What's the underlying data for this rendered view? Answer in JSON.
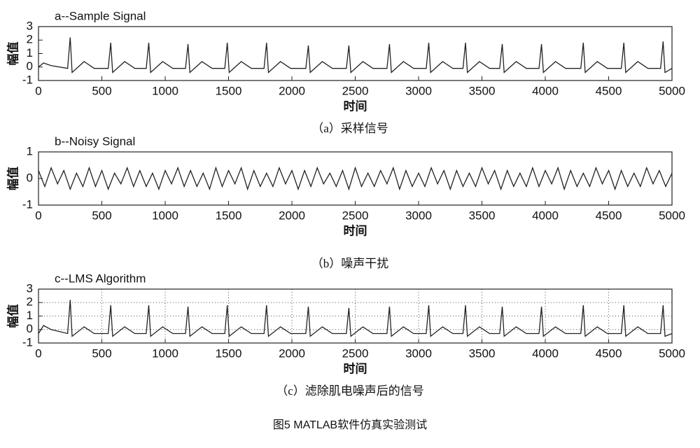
{
  "chart_data": [
    {
      "type": "line",
      "title": "a--Sample Signal",
      "ylabel": "幅值",
      "xlabel": "时间",
      "caption": "（a）采样信号",
      "color": "#222222",
      "grid": false,
      "xlim": [
        0,
        5000
      ],
      "ylim": [
        -1,
        3
      ],
      "xticks": [
        0,
        500,
        1000,
        1500,
        2000,
        2500,
        3000,
        3500,
        4000,
        4500,
        5000
      ],
      "yticks": [
        -1,
        0,
        1,
        2,
        3
      ],
      "x": [
        0,
        40,
        100,
        230,
        250,
        265,
        360,
        440,
        550,
        570,
        585,
        680,
        760,
        850,
        870,
        885,
        980,
        1060,
        1160,
        1180,
        1195,
        1290,
        1370,
        1470,
        1490,
        1505,
        1600,
        1680,
        1780,
        1800,
        1815,
        1910,
        1990,
        2110,
        2130,
        2145,
        2240,
        2320,
        2430,
        2450,
        2465,
        2560,
        2640,
        2750,
        2770,
        2785,
        2880,
        2960,
        3060,
        3080,
        3095,
        3190,
        3270,
        3350,
        3370,
        3385,
        3480,
        3560,
        3640,
        3660,
        3675,
        3770,
        3850,
        3950,
        3970,
        3985,
        4080,
        4160,
        4280,
        4300,
        4315,
        4410,
        4490,
        4600,
        4620,
        4635,
        4730,
        4810,
        4910,
        4930,
        4945,
        5000
      ],
      "values": [
        0,
        0.3,
        0.1,
        -0.1,
        2.2,
        -0.4,
        0.4,
        -0.1,
        -0.1,
        1.8,
        -0.4,
        0.4,
        -0.1,
        -0.1,
        1.8,
        -0.4,
        0.4,
        -0.1,
        -0.1,
        1.7,
        -0.4,
        0.4,
        -0.1,
        -0.1,
        1.8,
        -0.4,
        0.4,
        -0.1,
        -0.1,
        1.8,
        -0.4,
        0.4,
        -0.1,
        -0.1,
        1.6,
        -0.4,
        0.4,
        -0.1,
        -0.1,
        1.6,
        -0.4,
        0.4,
        -0.1,
        -0.1,
        1.7,
        -0.4,
        0.4,
        -0.1,
        -0.1,
        1.8,
        -0.4,
        0.4,
        -0.1,
        -0.1,
        1.8,
        -0.4,
        0.4,
        -0.1,
        -0.1,
        1.7,
        -0.4,
        0.4,
        -0.1,
        -0.1,
        1.7,
        -0.4,
        0.4,
        -0.1,
        -0.1,
        1.8,
        -0.4,
        0.4,
        -0.1,
        -0.1,
        1.8,
        -0.4,
        0.4,
        -0.1,
        -0.1,
        1.9,
        -0.4,
        -0.1
      ]
    },
    {
      "type": "line",
      "title": "b--Noisy Signal",
      "ylabel": "幅值",
      "xlabel": "时间",
      "caption": "（b）噪声干扰",
      "color": "#222222",
      "grid": false,
      "xlim": [
        0,
        5000
      ],
      "ylim": [
        -1,
        1
      ],
      "xticks": [
        0,
        500,
        1000,
        1500,
        2000,
        2500,
        3000,
        3500,
        4000,
        4500,
        5000
      ],
      "yticks": [
        -1,
        0,
        1
      ],
      "x": [
        0,
        50,
        100,
        150,
        200,
        250,
        300,
        350,
        400,
        450,
        500,
        550,
        600,
        650,
        700,
        750,
        800,
        850,
        900,
        950,
        1000,
        1050,
        1100,
        1150,
        1200,
        1250,
        1300,
        1350,
        1400,
        1450,
        1500,
        1550,
        1600,
        1650,
        1700,
        1750,
        1800,
        1850,
        1900,
        1950,
        2000,
        2050,
        2100,
        2150,
        2200,
        2250,
        2300,
        2350,
        2400,
        2450,
        2500,
        2550,
        2600,
        2650,
        2700,
        2750,
        2800,
        2850,
        2900,
        2950,
        3000,
        3050,
        3100,
        3150,
        3200,
        3250,
        3300,
        3350,
        3400,
        3450,
        3500,
        3550,
        3600,
        3650,
        3700,
        3750,
        3800,
        3850,
        3900,
        3950,
        4000,
        4050,
        4100,
        4150,
        4200,
        4250,
        4300,
        4350,
        4400,
        4450,
        4500,
        4550,
        4600,
        4650,
        4700,
        4750,
        4800,
        4850,
        4900,
        4950,
        5000
      ],
      "values": [
        0.3,
        -0.3,
        0.4,
        -0.2,
        0.3,
        -0.4,
        0.2,
        -0.3,
        0.4,
        -0.3,
        0.3,
        -0.4,
        0.2,
        -0.2,
        0.4,
        -0.3,
        0.3,
        -0.3,
        0.2,
        -0.4,
        0.3,
        -0.2,
        0.4,
        -0.3,
        0.3,
        -0.3,
        0.2,
        -0.4,
        0.4,
        -0.3,
        0.3,
        -0.2,
        0.4,
        -0.4,
        0.3,
        -0.3,
        0.2,
        -0.3,
        0.4,
        -0.2,
        0.3,
        -0.4,
        0.3,
        -0.3,
        0.4,
        -0.2,
        0.2,
        -0.3,
        0.3,
        -0.4,
        0.4,
        -0.3,
        0.2,
        -0.3,
        0.3,
        -0.2,
        0.4,
        -0.4,
        0.3,
        -0.3,
        0.2,
        -0.3,
        0.4,
        -0.2,
        0.3,
        -0.4,
        0.3,
        -0.3,
        0.2,
        -0.3,
        0.4,
        -0.2,
        0.3,
        -0.4,
        0.3,
        -0.3,
        0.2,
        -0.3,
        0.4,
        -0.3,
        0.3,
        -0.2,
        0.4,
        -0.4,
        0.3,
        -0.3,
        0.2,
        -0.3,
        0.4,
        -0.2,
        0.3,
        -0.4,
        0.3,
        -0.3,
        0.2,
        -0.3,
        0.4,
        -0.2,
        0.3,
        -0.3,
        0.2
      ]
    },
    {
      "type": "line",
      "title": "c--LMS Algorithm",
      "ylabel": "幅值",
      "xlabel": "时间",
      "caption": "（c）滤除肌电噪声后的信号",
      "color": "#222222",
      "grid": true,
      "xlim": [
        0,
        5000
      ],
      "ylim": [
        -1,
        3
      ],
      "xticks": [
        0,
        500,
        1000,
        1500,
        2000,
        2500,
        3000,
        3500,
        4000,
        4500,
        5000
      ],
      "yticks": [
        -1,
        0,
        1,
        2,
        3
      ],
      "x": [
        0,
        40,
        100,
        230,
        250,
        265,
        360,
        440,
        550,
        570,
        585,
        680,
        760,
        850,
        870,
        885,
        980,
        1060,
        1160,
        1180,
        1195,
        1290,
        1370,
        1470,
        1490,
        1505,
        1600,
        1680,
        1780,
        1800,
        1815,
        1910,
        1990,
        2110,
        2130,
        2145,
        2240,
        2320,
        2430,
        2450,
        2465,
        2560,
        2640,
        2750,
        2770,
        2785,
        2880,
        2960,
        3060,
        3080,
        3095,
        3190,
        3270,
        3350,
        3370,
        3385,
        3480,
        3560,
        3640,
        3660,
        3675,
        3770,
        3850,
        3950,
        3970,
        3985,
        4080,
        4160,
        4280,
        4300,
        4315,
        4410,
        4490,
        4600,
        4620,
        4635,
        4730,
        4810,
        4910,
        4930,
        4945,
        5000
      ],
      "values": [
        -0.3,
        0.3,
        0,
        -0.3,
        2.2,
        -0.5,
        0.2,
        -0.3,
        -0.3,
        1.8,
        -0.5,
        0.2,
        -0.3,
        -0.3,
        1.8,
        -0.5,
        0.2,
        -0.3,
        -0.3,
        1.7,
        -0.5,
        0.2,
        -0.3,
        -0.3,
        1.8,
        -0.5,
        0.2,
        -0.3,
        -0.3,
        1.8,
        -0.5,
        0.2,
        -0.3,
        -0.3,
        1.7,
        -0.5,
        0.2,
        -0.3,
        -0.3,
        1.6,
        -0.5,
        0.2,
        -0.3,
        -0.3,
        1.7,
        -0.5,
        0.2,
        -0.3,
        -0.3,
        1.8,
        -0.5,
        0.2,
        -0.3,
        -0.3,
        1.8,
        -0.5,
        0.2,
        -0.3,
        -0.3,
        1.7,
        -0.5,
        0.2,
        -0.3,
        -0.3,
        1.7,
        -0.5,
        0.2,
        -0.3,
        -0.3,
        1.8,
        -0.5,
        0.2,
        -0.3,
        -0.3,
        1.8,
        -0.5,
        0.2,
        -0.3,
        -0.3,
        1.8,
        -0.5,
        -0.3
      ]
    }
  ],
  "figure_caption": "图5 MATLAB软件仿真实验测试"
}
